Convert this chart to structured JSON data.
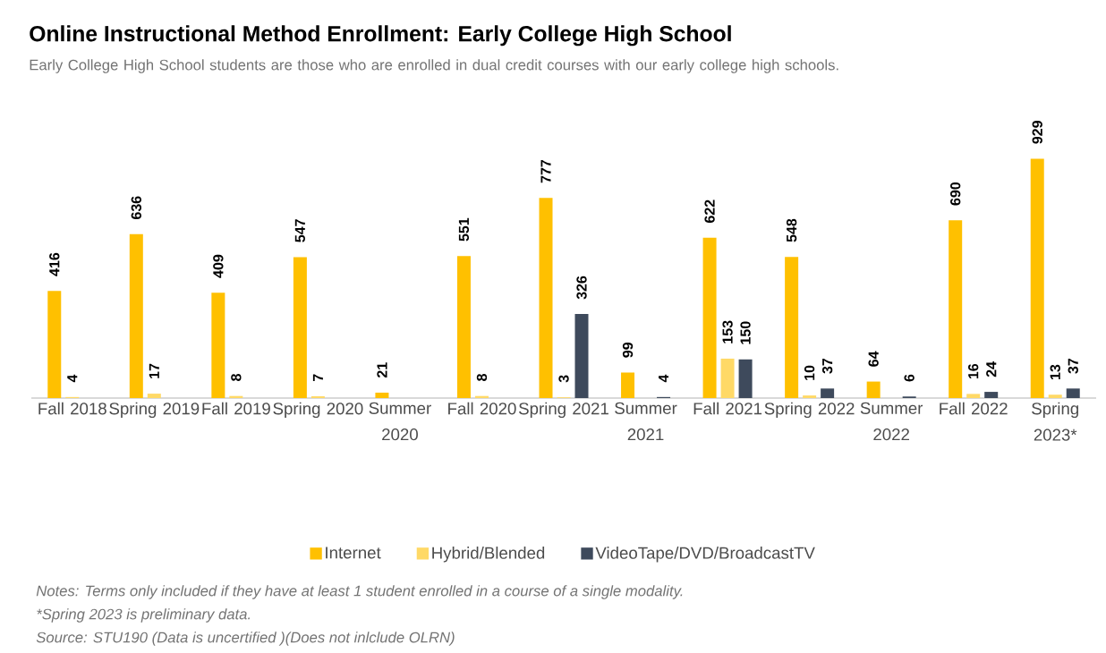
{
  "chart_data": {
    "type": "bar",
    "title": "Online Instructional Method Enrollment: Early College High School",
    "subtitle": "Early College High School students are those who are enrolled in dual credit courses with our early college high schools.",
    "categories": [
      "Fall 2018",
      "Spring 2019",
      "Fall 2019",
      "Spring 2020",
      "Summer 2020",
      "Fall 2020",
      "Spring 2021",
      "Summer 2021",
      "Fall 2021",
      "Spring 2022",
      "Summer 2022",
      "Fall 2022",
      "Spring 2023*"
    ],
    "series": [
      {
        "name": "Internet",
        "color": "#ffc000",
        "values": [
          416,
          636,
          409,
          547,
          21,
          551,
          777,
          99,
          622,
          548,
          64,
          690,
          929
        ]
      },
      {
        "name": "Hybrid/Blended",
        "color": "#ffd966",
        "values": [
          4,
          17,
          8,
          7,
          null,
          8,
          3,
          null,
          153,
          10,
          null,
          16,
          13
        ]
      },
      {
        "name": "VideoTape/DVD/BroadcastTV",
        "color": "#3e4a5c",
        "values": [
          null,
          null,
          null,
          null,
          null,
          null,
          326,
          4,
          150,
          37,
          6,
          24,
          37
        ]
      }
    ],
    "data_labels": true,
    "legend": "bottom",
    "grid": false,
    "annotations": [
      "Notes: Terms only included if they have at least 1 student enrolled in a course of a single modality.",
      "*Spring 2023 is preliminary data.",
      "Source: STU190 (Data is uncertified )(Does not inlclude OLRN)"
    ]
  }
}
